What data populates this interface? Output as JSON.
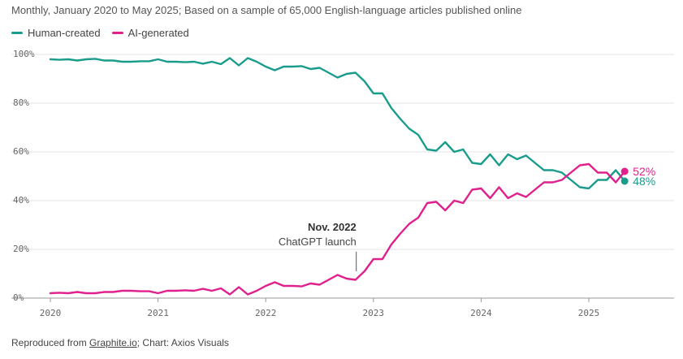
{
  "chart_data": {
    "type": "line",
    "subtitle": "Monthly, January 2020 to May 2025; Based on a sample of 65,000 English-language articles published online",
    "ylim": [
      0,
      100
    ],
    "y_ticks": [
      0,
      20,
      40,
      60,
      80,
      100
    ],
    "y_tick_labels": [
      "0%",
      "20%",
      "40%",
      "60%",
      "80%",
      "100%"
    ],
    "x_ticks": [
      0,
      12,
      24,
      36,
      48,
      60
    ],
    "x_tick_labels": [
      "2020",
      "2021",
      "2022",
      "2023",
      "2024",
      "2025"
    ],
    "x_range": [
      0,
      64
    ],
    "series": [
      {
        "name": "Human-created",
        "color": "#1a9c8c",
        "end_label": "48%",
        "values": [
          98,
          97.8,
          98,
          97.5,
          98,
          98.2,
          97.5,
          97.5,
          97,
          97,
          97.2,
          97.2,
          98,
          97,
          97,
          96.8,
          97,
          96.2,
          97,
          96,
          98.5,
          95.5,
          98.5,
          97,
          95,
          93.5,
          95,
          95,
          95.2,
          94,
          94.5,
          92.5,
          90.5,
          92,
          92.5,
          89,
          84,
          84,
          78,
          73.5,
          69.5,
          67,
          61,
          60.5,
          64,
          60,
          61,
          55.5,
          55,
          59,
          54.5,
          59,
          57,
          58.5,
          55.5,
          52.5,
          52.5,
          51.5,
          48.5,
          45.5,
          45,
          48.5,
          48.5,
          52.5,
          48
        ]
      },
      {
        "name": "AI-generated",
        "color": "#e0208c",
        "end_label": "52%",
        "values": [
          2,
          2.2,
          2,
          2.5,
          2,
          2,
          2.5,
          2.5,
          3,
          3,
          2.8,
          2.8,
          2,
          3,
          3,
          3.2,
          3,
          3.8,
          3,
          4,
          1.5,
          4.5,
          1.5,
          3,
          5,
          6.5,
          5,
          5,
          4.8,
          6,
          5.5,
          7.5,
          9.5,
          8,
          7.5,
          11,
          16,
          16,
          22,
          26.5,
          30.5,
          33,
          39,
          39.5,
          36,
          40,
          39,
          44.5,
          45,
          41,
          45.5,
          41,
          43,
          41.5,
          44.5,
          47.5,
          47.5,
          48.5,
          51.5,
          54.5,
          55,
          51.5,
          51.5,
          47.5,
          52
        ]
      }
    ],
    "annotation": {
      "title": "Nov. 2022",
      "text": "ChatGPT launch",
      "x_index": 34
    },
    "source_prefix": "Reproduced from ",
    "source_link": "Graphite.io",
    "source_suffix": "; Chart: Axios Visuals"
  }
}
